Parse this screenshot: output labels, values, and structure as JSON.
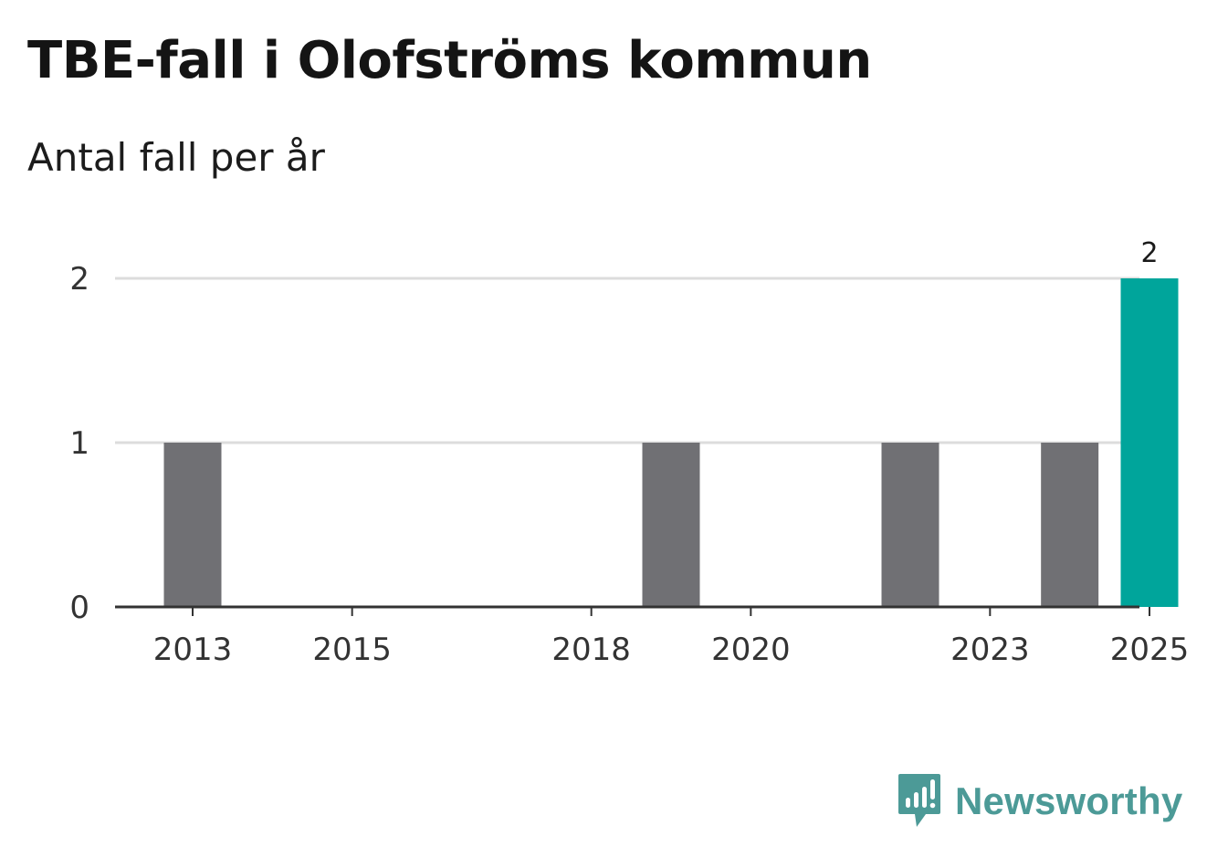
{
  "header": {
    "title": "TBE-fall i Olofströms kommun",
    "subtitle": "Antal fall per år"
  },
  "brand": {
    "name": "Newsworthy",
    "color": "#4c9a97",
    "icon": "newsworthy-logo-icon"
  },
  "chart_data": {
    "type": "bar",
    "title": "TBE-fall i Olofströms kommun",
    "subtitle": "Antal fall per år",
    "xlabel": "",
    "ylabel": "",
    "categories": [
      "2013",
      "2014",
      "2015",
      "2016",
      "2017",
      "2018",
      "2019",
      "2020",
      "2021",
      "2022",
      "2023",
      "2024",
      "2025"
    ],
    "values": [
      1,
      0,
      0,
      0,
      0,
      0,
      1,
      0,
      0,
      1,
      0,
      1,
      2
    ],
    "x_tick_labels": [
      "2013",
      "2015",
      "2018",
      "2020",
      "2023",
      "2025"
    ],
    "ylim": [
      0,
      2
    ],
    "y_ticks": [
      0,
      1,
      2
    ],
    "grid": true,
    "bar_color": "#707074",
    "highlight_color": "#00a59b",
    "highlight_category": "2025",
    "data_labels": [
      {
        "category": "2025",
        "text": "2"
      }
    ]
  }
}
